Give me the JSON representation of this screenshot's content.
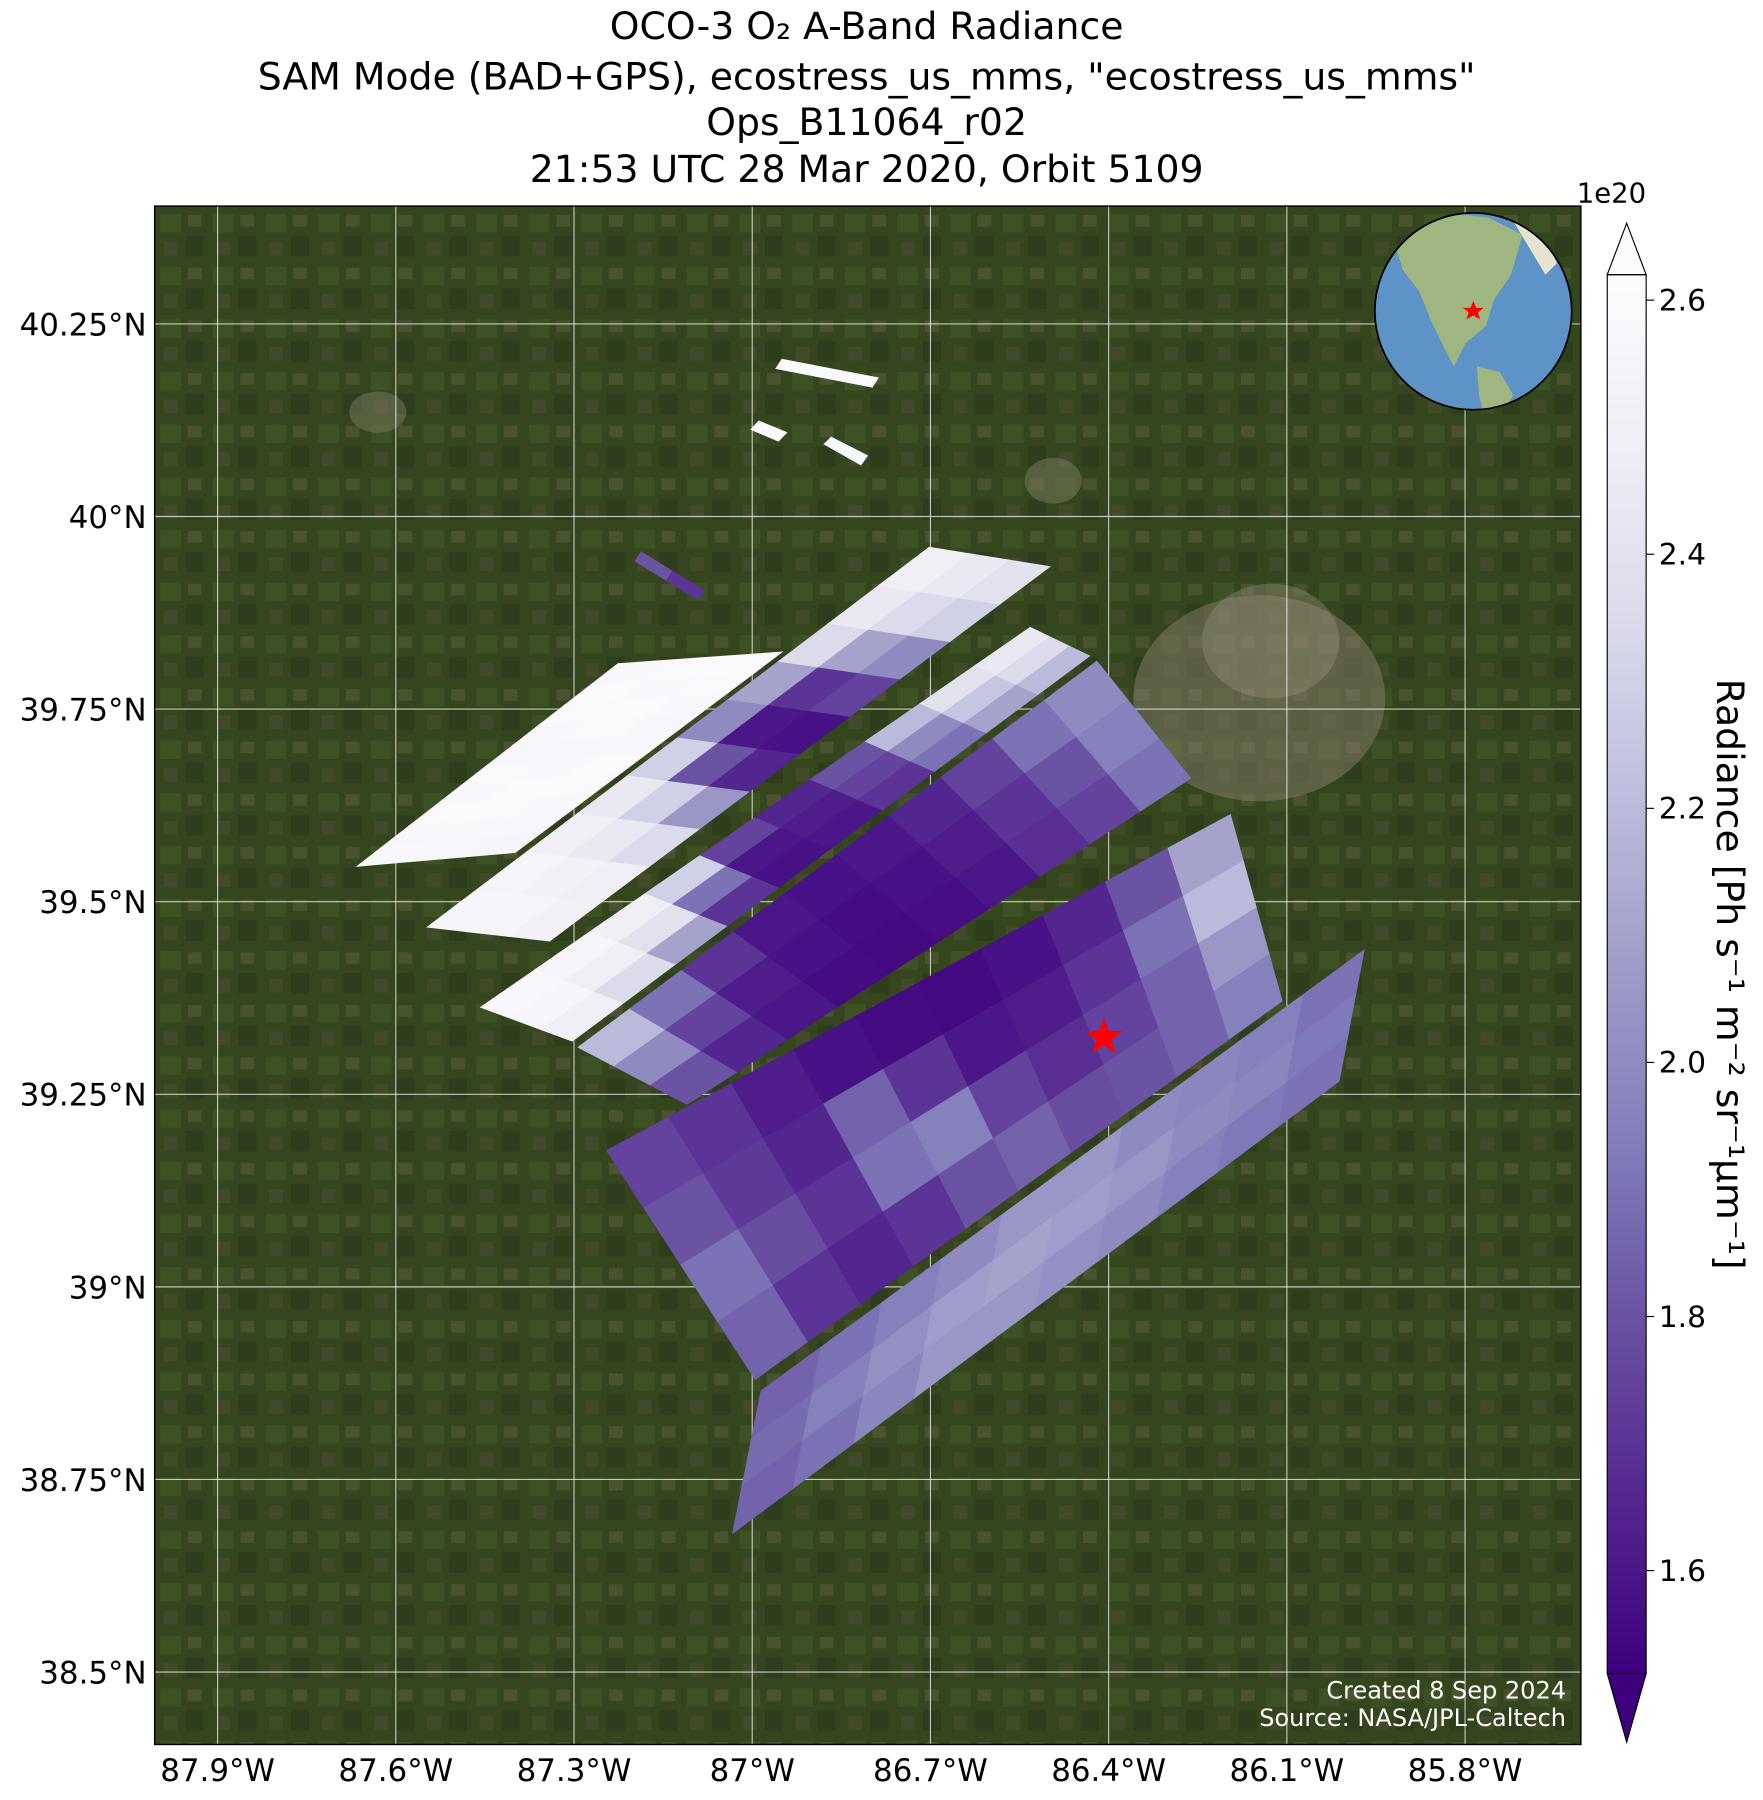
{
  "chart_data": {
    "type": "map",
    "title": [
      "OCO-3 O₂ A-Band Radiance",
      "SAM Mode (BAD+GPS), ecostress_us_mms, \"ecostress_us_mms\"",
      "Ops_B11064_r02",
      "21:53 UTC 28 Mar 2020, Orbit 5109"
    ],
    "xlim": [
      -88.006,
      -85.605
    ],
    "ylim": [
      38.406,
      40.403
    ],
    "xticks": [
      {
        "value": -87.9,
        "label": "87.9°W"
      },
      {
        "value": -87.6,
        "label": "87.6°W"
      },
      {
        "value": -87.3,
        "label": "87.3°W"
      },
      {
        "value": -87.0,
        "label": "87°W"
      },
      {
        "value": -86.7,
        "label": "86.7°W"
      },
      {
        "value": -86.4,
        "label": "86.4°W"
      },
      {
        "value": -86.1,
        "label": "86.1°W"
      },
      {
        "value": -85.8,
        "label": "85.8°W"
      }
    ],
    "yticks": [
      {
        "value": 40.25,
        "label": "40.25°N"
      },
      {
        "value": 40.0,
        "label": "40°N"
      },
      {
        "value": 39.75,
        "label": "39.75°N"
      },
      {
        "value": 39.5,
        "label": "39.5°N"
      },
      {
        "value": 39.25,
        "label": "39.25°N"
      },
      {
        "value": 39.0,
        "label": "39°N"
      },
      {
        "value": 38.75,
        "label": "38.75°N"
      },
      {
        "value": 38.5,
        "label": "38.5°N"
      }
    ],
    "grid": true,
    "target": {
      "lon": -86.408,
      "lat": 39.324,
      "color": "#ff0000"
    },
    "swaths": [
      {
        "corners": [
          [
            -87.665,
            39.546
          ],
          [
            -87.226,
            39.809
          ],
          [
            -86.95,
            39.824
          ],
          [
            -87.399,
            39.564
          ]
        ],
        "values": [
          [
            2.58,
            2.57,
            2.6,
            2.58,
            2.59,
            2.57,
            2.58,
            2.59,
            2.6,
            2.58
          ],
          [
            2.57,
            2.58,
            2.59,
            2.6,
            2.58,
            2.57,
            2.59,
            2.6,
            2.58,
            2.59
          ],
          [
            2.56,
            2.57,
            2.58,
            2.59,
            2.6,
            2.58,
            2.57,
            2.58,
            2.59,
            2.6
          ]
        ]
      },
      {
        "corners": [
          [
            -87.547,
            39.467
          ],
          [
            -86.702,
            39.96
          ],
          [
            -86.499,
            39.935
          ],
          [
            -87.341,
            39.449
          ]
        ],
        "values": [
          [
            2.56,
            2.55,
            2.5,
            2.45,
            2.3,
            2.0,
            2.1,
            2.35,
            2.45,
            2.5
          ],
          [
            2.55,
            2.52,
            2.45,
            2.3,
            1.8,
            1.6,
            1.7,
            2.1,
            2.35,
            2.45
          ],
          [
            2.52,
            2.48,
            2.35,
            2.05,
            1.65,
            1.58,
            1.75,
            2.0,
            2.3,
            2.4
          ]
        ]
      },
      {
        "corners": [
          [
            -87.457,
            39.363
          ],
          [
            -86.532,
            39.856
          ],
          [
            -86.432,
            39.819
          ],
          [
            -87.303,
            39.319
          ]
        ],
        "values": [
          [
            2.58,
            2.55,
            2.5,
            2.3,
            1.75,
            1.65,
            1.8,
            2.2,
            2.4,
            2.45
          ],
          [
            2.56,
            2.5,
            2.4,
            1.9,
            1.6,
            1.62,
            1.75,
            2.0,
            2.25,
            2.35
          ],
          [
            2.5,
            2.35,
            2.1,
            1.7,
            1.58,
            1.6,
            1.7,
            1.9,
            2.1,
            2.2
          ]
        ]
      },
      {
        "corners": [
          [
            -87.293,
            39.311
          ],
          [
            -86.42,
            39.812
          ],
          [
            -86.262,
            39.66
          ],
          [
            -87.11,
            39.237
          ]
        ],
        "values": [
          [
            2.2,
            1.9,
            1.7,
            1.6,
            1.58,
            1.6,
            1.65,
            1.75,
            1.9,
            2.0
          ],
          [
            2.0,
            1.75,
            1.62,
            1.58,
            1.56,
            1.58,
            1.62,
            1.7,
            1.8,
            1.95
          ],
          [
            1.8,
            1.65,
            1.6,
            1.56,
            1.55,
            1.57,
            1.6,
            1.68,
            1.75,
            1.9
          ]
        ]
      },
      {
        "corners": [
          [
            -87.245,
            39.177
          ],
          [
            -86.195,
            39.613
          ],
          [
            -86.108,
            39.371
          ],
          [
            -86.995,
            38.88
          ]
        ],
        "values": [
          [
            1.75,
            1.7,
            1.62,
            1.58,
            1.56,
            1.55,
            1.58,
            1.65,
            1.8,
            2.1
          ],
          [
            1.8,
            1.72,
            1.65,
            1.85,
            1.7,
            1.6,
            1.62,
            1.7,
            1.9,
            2.2
          ],
          [
            1.9,
            1.78,
            1.7,
            1.9,
            1.95,
            1.75,
            1.68,
            1.75,
            1.85,
            2.05
          ],
          [
            1.85,
            1.7,
            1.65,
            1.7,
            1.8,
            1.85,
            1.78,
            1.8,
            1.85,
            1.95
          ]
        ]
      },
      {
        "corners": [
          [
            -86.985,
            38.865
          ],
          [
            -85.97,
            39.437
          ],
          [
            -86.012,
            39.267
          ],
          [
            -87.033,
            38.68
          ]
        ],
        "values": [
          [
            1.85,
            1.9,
            1.95,
            2.0,
            2.05,
            2.05,
            2.0,
            1.98,
            1.95,
            1.9
          ],
          [
            1.88,
            1.95,
            2.02,
            2.08,
            2.1,
            2.08,
            2.05,
            2.0,
            1.98,
            1.92
          ],
          [
            1.85,
            1.9,
            1.98,
            2.05,
            2.05,
            2.02,
            2.0,
            1.95,
            1.92,
            1.9
          ]
        ]
      },
      {
        "corners": [
          [
            -87.197,
            39.942
          ],
          [
            -87.091,
            39.892
          ],
          [
            -87.081,
            39.904
          ],
          [
            -87.187,
            39.954
          ]
        ],
        "values": [
          [
            1.8,
            1.7
          ]
        ]
      },
      {
        "corners": [
          [
            -86.96,
            40.192
          ],
          [
            -86.798,
            40.168
          ],
          [
            -86.788,
            40.18
          ],
          [
            -86.95,
            40.204
          ]
        ],
        "values": [
          [
            2.6,
            2.6
          ]
        ]
      },
      {
        "corners": [
          [
            -87.002,
            40.113
          ],
          [
            -86.956,
            40.098
          ],
          [
            -86.942,
            40.109
          ],
          [
            -86.989,
            40.124
          ]
        ],
        "values": [
          [
            2.6
          ]
        ]
      },
      {
        "corners": [
          [
            -86.879,
            40.094
          ],
          [
            -86.817,
            40.067
          ],
          [
            -86.806,
            40.079
          ],
          [
            -86.867,
            40.103
          ]
        ],
        "values": [
          [
            2.58
          ]
        ]
      }
    ],
    "colorbar": {
      "label": "Radiance [Ph s⁻¹ m⁻² sr⁻¹μm⁻¹]",
      "offset_text": "1e20",
      "lim": [
        1.519,
        2.62
      ],
      "ticks": [
        1.6,
        1.8,
        {
          "value": 2.0,
          "label": "2.0"
        },
        2.2,
        2.4,
        2.6
      ],
      "extend": "both",
      "colormap": [
        "#3f007d",
        "#54278f",
        "#6a51a3",
        "#807dba",
        "#9e9ac8",
        "#bcbddc",
        "#dadaeb",
        "#efedf5",
        "#fcfbfd"
      ]
    },
    "credits": [
      "Created 8 Sep 2024",
      "Source: NASA/JPL-Caltech"
    ]
  }
}
